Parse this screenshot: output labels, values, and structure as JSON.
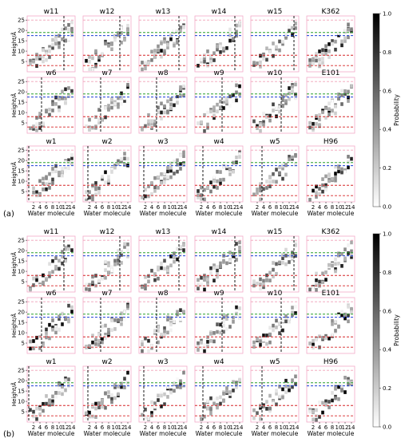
{
  "figure": {
    "colors": {
      "frame": "#f2aac8",
      "red_line": "#d62728",
      "green_line": "#2ca02c",
      "blue_line": "#1f3fd6",
      "black_line": "#000000",
      "pale_red_line": "#f0a0b8"
    }
  },
  "chart_data": [
    {
      "type": "heatmap",
      "panel_label": "(a)",
      "subplot_titles": [
        "w11",
        "w12",
        "w13",
        "w14",
        "w15",
        "K362",
        "w6",
        "w7",
        "w8",
        "w9",
        "w10",
        "E101",
        "w1",
        "w2",
        "w3",
        "w4",
        "w5",
        "H96"
      ],
      "xlabel": "Water molecule",
      "ylabel": "Height/Å",
      "x_ticks": [
        2,
        4,
        6,
        8,
        10,
        12,
        14
      ],
      "y_ticks": [
        5,
        10,
        15,
        20,
        25
      ],
      "xlim": [
        0,
        15
      ],
      "ylim": [
        0,
        27
      ],
      "colorbar": {
        "label": "Probability",
        "ticks": [
          0.0,
          0.2,
          0.4,
          0.6,
          0.8,
          1.0
        ],
        "range": [
          0,
          1
        ]
      },
      "reference_lines_y": {
        "pale_red": 25,
        "green": 19,
        "blue": 17.5,
        "red_upper": 8,
        "red_lower": 3
      },
      "vertical_lines_x": [
        11.5,
        11.5,
        12.5,
        12.5,
        13.5,
        null,
        4.5,
        5.5,
        5.5,
        8.5,
        9.5,
        null,
        0.5,
        1.5,
        1.5,
        2.5,
        3.5,
        null
      ]
    },
    {
      "type": "heatmap",
      "panel_label": "(b)",
      "subplot_titles": [
        "w11",
        "w12",
        "w13",
        "w14",
        "w15",
        "K362",
        "w6",
        "w7",
        "w8",
        "w9",
        "w10",
        "E101",
        "w1",
        "w2",
        "w3",
        "w4",
        "w5",
        "H96"
      ],
      "xlabel": "Water molecule",
      "ylabel": "Height/Å",
      "x_ticks": [
        2,
        4,
        6,
        8,
        10,
        12,
        14
      ],
      "y_ticks": [
        5,
        10,
        15,
        20,
        25
      ],
      "xlim": [
        0,
        15
      ],
      "ylim": [
        0,
        27
      ],
      "colorbar": {
        "label": "Probability",
        "ticks": [
          0.0,
          0.2,
          0.4,
          0.6,
          0.8,
          1.0
        ],
        "range": [
          0,
          1
        ]
      },
      "reference_lines_y": {
        "pale_red": 25,
        "green": 19,
        "blue": 17.5,
        "red_upper": 8,
        "red_lower": 3
      },
      "vertical_lines_x": [
        11.5,
        11.5,
        12.5,
        12.5,
        13.5,
        null,
        4.5,
        5.5,
        5.5,
        8.5,
        9.5,
        null,
        0.5,
        1.5,
        1.5,
        2.5,
        3.5,
        null
      ]
    }
  ]
}
